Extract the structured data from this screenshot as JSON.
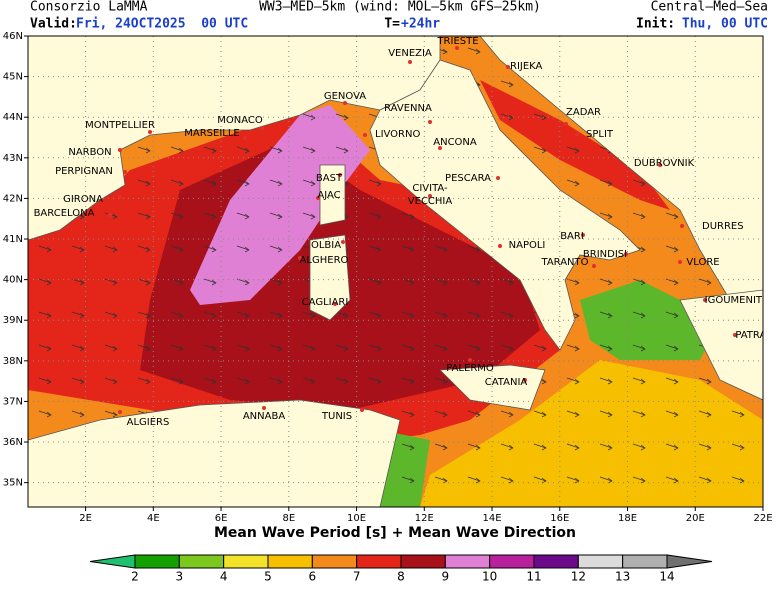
{
  "header": {
    "left": "Consorzio LaMMA",
    "center": "WW3–MED–5km (wind: MOL–5km GFS–25km)",
    "right": "Central–Med–Sea",
    "valid_label": "Valid:",
    "valid_value": "Fri, 24OCT2025  00 UTC",
    "t_label": "T=",
    "t_value": "+24hr",
    "init_label": "Init:",
    "init_value": "Thu, 00 UTC"
  },
  "map": {
    "lonlim": [
      0.3,
      22
    ],
    "latlim": [
      34.4,
      46
    ],
    "lon_ticks": [
      {
        "value": 2,
        "label": "2E"
      },
      {
        "value": 4,
        "label": "4E"
      },
      {
        "value": 6,
        "label": "6E"
      },
      {
        "value": 8,
        "label": "8E"
      },
      {
        "value": 10,
        "label": "10E"
      },
      {
        "value": 12,
        "label": "12E"
      },
      {
        "value": 14,
        "label": "14E"
      },
      {
        "value": 16,
        "label": "16E"
      },
      {
        "value": 18,
        "label": "18E"
      },
      {
        "value": 20,
        "label": "20E"
      },
      {
        "value": 22,
        "label": "22E"
      }
    ],
    "lat_ticks": [
      {
        "value": 46,
        "label": "46N"
      },
      {
        "value": 45,
        "label": "45N"
      },
      {
        "value": 44,
        "label": "44N"
      },
      {
        "value": 43,
        "label": "43N"
      },
      {
        "value": 42,
        "label": "42N"
      },
      {
        "value": 41,
        "label": "41N"
      },
      {
        "value": 40,
        "label": "40N"
      },
      {
        "value": 39,
        "label": "39N"
      },
      {
        "value": 38,
        "label": "38N"
      },
      {
        "value": 37,
        "label": "37N"
      },
      {
        "value": 36,
        "label": "36N"
      },
      {
        "value": 35,
        "label": "35N"
      }
    ],
    "cities": [
      "TRIESTE",
      "VENEZIA",
      "RIJEKA",
      "GENOVA",
      "RAVENNA",
      "ZADAR",
      "MONTPELLIER",
      "MONACO",
      "MARSEILLE",
      "LIVORNO",
      "ANCONA",
      "SPLIT",
      "NARBON",
      "PERPIGNAN",
      "DUBROVNIK",
      "BAST",
      "AJAC",
      "PESCARA",
      "CIVITA-",
      "VECCHIA",
      "GIRONA",
      "BARCELONA",
      "DURRES",
      "BARI",
      "OLBIA",
      "NAPOLI",
      "BRINDISI",
      "ALGHERO",
      "TARANTO",
      "VLORE",
      "IGOUMENITSA",
      "CAGLIARI",
      "PATRAS",
      "PALERMO",
      "CATANIA",
      "ALGIERS",
      "ANNABA",
      "TUNIS"
    ],
    "caption": "Mean Wave Period [s] + Mean Wave Direction"
  },
  "colorbar": {
    "levels": [
      2,
      3,
      4,
      5,
      6,
      7,
      8,
      9,
      10,
      11,
      12,
      13,
      14
    ],
    "colors": [
      "#1fc070",
      "#13a000",
      "#7cc81e",
      "#f2e22a",
      "#f6c000",
      "#f48a1c",
      "#e4261a",
      "#a8101a",
      "#e080d4",
      "#b8209c",
      "#6a0a8a",
      "#dcdcdc",
      "#b0b0b0",
      "#707070"
    ]
  }
}
